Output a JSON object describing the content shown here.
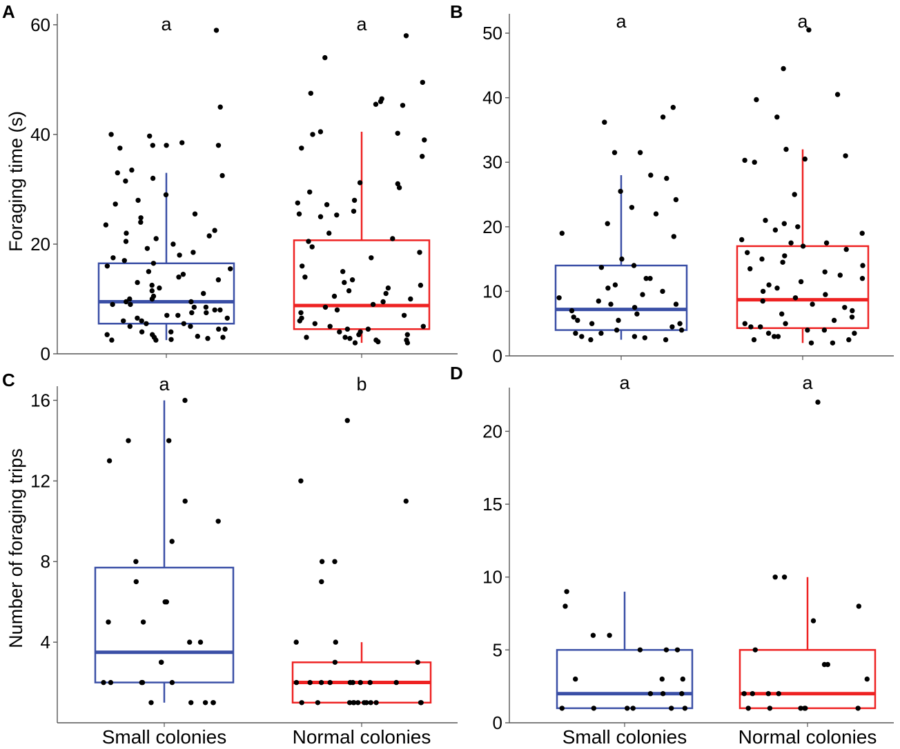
{
  "colors": {
    "small": "#3a4fa6",
    "normal": "#ee2222",
    "points": "#000000",
    "axis": "#555555"
  },
  "chart_data": [
    {
      "panel_label": "A",
      "type": "boxplot",
      "ylabel": "Foraging time (s)",
      "xlabel": "",
      "ylim": [
        0,
        62
      ],
      "yticks": [
        "0",
        "20",
        "40",
        "60"
      ],
      "categories": [
        "Small colonies",
        "Normal colonies"
      ],
      "show_xtick_labels": false,
      "significance": [
        "a",
        "a"
      ],
      "boxes": [
        {
          "q1": 5.5,
          "median": 9.5,
          "q3": 16.5,
          "whisker_low": 2.5,
          "whisker_high": 33
        },
        {
          "q1": 4.5,
          "median": 8.8,
          "q3": 20.7,
          "whisker_low": 2,
          "whisker_high": 40.5
        }
      ],
      "points": [
        [
          59,
          45,
          40,
          38,
          38,
          37.5,
          39.7,
          38,
          38.5,
          33.5,
          33,
          32.5,
          32,
          31.5,
          29,
          28,
          27.3,
          25.5,
          24.8,
          24,
          23.5,
          22.5,
          22,
          21.5,
          21,
          20.5,
          20,
          19.2,
          18.5,
          18,
          17.5,
          17,
          16.5,
          16,
          15.5,
          15,
          14.5,
          14,
          13.5,
          13,
          12.5,
          12,
          11.5,
          11,
          10.5,
          10,
          10,
          9.5,
          9.5,
          9,
          9,
          8.5,
          8.5,
          8,
          8,
          7.5,
          7.5,
          7,
          7,
          6.5,
          6.5,
          6,
          6,
          5.5,
          5.5,
          5,
          5,
          4.5,
          4.5,
          4,
          4,
          3.5,
          3.5,
          3,
          3,
          2.8,
          2.6,
          2.5,
          2.5,
          3.2
        ],
        [
          58,
          54,
          49.5,
          47.5,
          46.5,
          46,
          45.5,
          45.3,
          40.5,
          40.2,
          40,
          39,
          37.5,
          36,
          31.2,
          31,
          30.3,
          29.5,
          28,
          27.5,
          27.2,
          26,
          25.5,
          25.3,
          25,
          22,
          21,
          20.5,
          19.5,
          18.5,
          17.5,
          16,
          15,
          14,
          13.5,
          13,
          12.5,
          12,
          11.5,
          11,
          10.5,
          10,
          9.5,
          9,
          8.5,
          8,
          7.5,
          7,
          6.5,
          6,
          5.5,
          5,
          5,
          4.5,
          4.5,
          4,
          4,
          3.5,
          3.5,
          3,
          3,
          2.5,
          2.5,
          2,
          2,
          2.2,
          2.8
        ]
      ]
    },
    {
      "panel_label": "B",
      "type": "boxplot",
      "ylabel": "",
      "xlabel": "",
      "ylim": [
        0,
        53
      ],
      "yticks": [
        "0",
        "10",
        "20",
        "30",
        "40",
        "50"
      ],
      "categories": [
        "Small colonies",
        "Normal colonies"
      ],
      "show_xtick_labels": false,
      "significance": [
        "a",
        "a"
      ],
      "boxes": [
        {
          "q1": 4,
          "median": 7.2,
          "q3": 14,
          "whisker_low": 2.5,
          "whisker_high": 28
        },
        {
          "q1": 4.3,
          "median": 8.7,
          "q3": 17,
          "whisker_low": 2,
          "whisker_high": 32
        }
      ],
      "points": [
        [
          38.5,
          37,
          36.2,
          31.5,
          31.5,
          28,
          27.5,
          25.5,
          24.2,
          23,
          22,
          20.5,
          19,
          18.5,
          15,
          14,
          13.7,
          12,
          12,
          11,
          10.5,
          10,
          9.5,
          9,
          8.5,
          8,
          8,
          7.5,
          7,
          6.5,
          6,
          5.5,
          5.5,
          5,
          5,
          4.5,
          4,
          4,
          3.5,
          3.5,
          3,
          3,
          2.8,
          2.5,
          2.5
        ],
        [
          50.5,
          44.5,
          40.5,
          39.7,
          37,
          32,
          31,
          30.5,
          30.3,
          30,
          25,
          21,
          20.5,
          20,
          19.5,
          19,
          18,
          17.5,
          17.5,
          17,
          16.5,
          16,
          15.5,
          15,
          14.5,
          14,
          13.5,
          13,
          12.5,
          12,
          11.5,
          11,
          10.5,
          10,
          9.5,
          9,
          8.5,
          8,
          7.5,
          7,
          6.5,
          6,
          5.5,
          5,
          5,
          4.5,
          4.5,
          4,
          4,
          3.5,
          3.5,
          3,
          3,
          2.5,
          2.5,
          2,
          2
        ]
      ]
    },
    {
      "panel_label": "C",
      "type": "boxplot",
      "ylabel": "Number of foraging trips",
      "xlabel": "",
      "ylim": [
        0,
        16.7
      ],
      "yticks": [
        "4",
        "8",
        "12",
        "16"
      ],
      "categories": [
        "Small colonies",
        "Normal colonies"
      ],
      "show_xtick_labels": true,
      "significance": [
        "a",
        "b"
      ],
      "boxes": [
        {
          "q1": 2,
          "median": 3.5,
          "q3": 7.7,
          "whisker_low": 1,
          "whisker_high": 16
        },
        {
          "q1": 1,
          "median": 2,
          "q3": 3,
          "whisker_low": 1,
          "whisker_high": 4
        }
      ],
      "points": [
        [
          16,
          14,
          14,
          13,
          11,
          10,
          9,
          8,
          7,
          6,
          6,
          5,
          5,
          4,
          4,
          3,
          3,
          2,
          2,
          2,
          2,
          2,
          1,
          1,
          1,
          1,
          1
        ],
        [
          15,
          12,
          11,
          8,
          8,
          7,
          4,
          4,
          3,
          3,
          2,
          2,
          2,
          2,
          2,
          2,
          2,
          2,
          2,
          1,
          1,
          1,
          1,
          1,
          1,
          1,
          1,
          1,
          1,
          1,
          1
        ]
      ]
    },
    {
      "panel_label": "D",
      "type": "boxplot",
      "ylabel": "",
      "xlabel": "",
      "ylim": [
        0,
        23
      ],
      "yticks": [
        "0",
        "5",
        "10",
        "15",
        "20"
      ],
      "categories": [
        "Small colonies",
        "Normal colonies"
      ],
      "show_xtick_labels": true,
      "significance": [
        "a",
        "a"
      ],
      "boxes": [
        {
          "q1": 1,
          "median": 2,
          "q3": 5,
          "whisker_low": 1,
          "whisker_high": 9
        },
        {
          "q1": 1,
          "median": 2,
          "q3": 5,
          "whisker_low": 1,
          "whisker_high": 10
        }
      ],
      "points": [
        [
          9,
          8,
          6,
          6,
          5,
          5,
          5,
          3,
          3,
          3,
          2,
          2,
          2,
          1,
          1,
          1,
          1,
          1,
          1
        ],
        [
          22,
          10,
          10,
          8,
          7,
          5,
          4,
          4,
          3,
          2,
          2,
          2,
          2,
          1,
          1,
          1,
          1,
          1,
          1
        ]
      ]
    }
  ]
}
